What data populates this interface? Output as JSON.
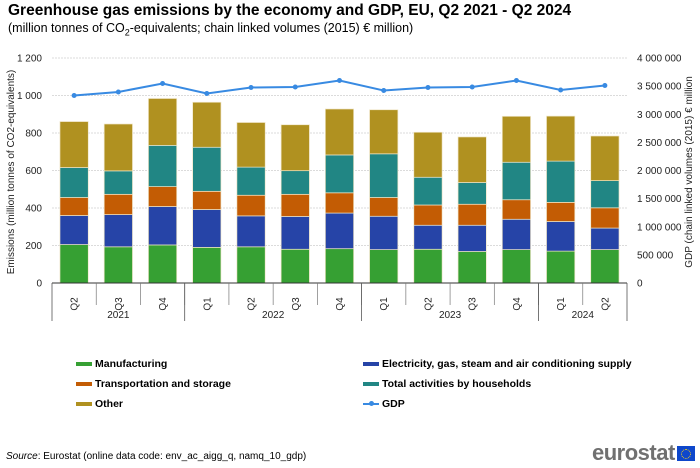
{
  "title": "Greenhouse gas emissions by the economy and GDP, EU, Q2 2021 - Q2 2024",
  "subtitle_pre": "(million tonnes of CO",
  "subtitle_sub": "2",
  "subtitle_post": "-equivalents;  chain linked  volumes  (2015) € million)",
  "source_label": "Source",
  "source_text": ": Eurostat (online data code: env_ac_aigg_q, namq_10_gdp)",
  "logo_text": "eurostat",
  "chart_data": {
    "type": "bar",
    "stacked": true,
    "title": "Greenhouse gas emissions by the economy and GDP, EU, Q2 2021 - Q2 2024",
    "ylabel": "Emissions (million tonnes of CO2-equivalents)",
    "y2label": "GDP (chain linked volumes (2015) € million",
    "ylim": [
      0,
      1200
    ],
    "y2lim": [
      0,
      4000000
    ],
    "yticks": [
      0,
      200,
      400,
      600,
      800,
      1000,
      1200
    ],
    "ytick_labels": [
      "0",
      "200",
      "400",
      "600",
      "800",
      "1 000",
      "1 200"
    ],
    "y2ticks": [
      0,
      500000,
      1000000,
      1500000,
      2000000,
      2500000,
      3000000,
      3500000,
      4000000
    ],
    "y2tick_labels": [
      "0",
      "500 000",
      "1 000 000",
      "1 500 000",
      "2 000 000",
      "2 500 000",
      "3 000 000",
      "3 500 000",
      "4 000 000"
    ],
    "grid": true,
    "categories": [
      "Q2",
      "Q3",
      "Q4",
      "Q1",
      "Q2",
      "Q3",
      "Q4",
      "Q1",
      "Q2",
      "Q3",
      "Q4",
      "Q1",
      "Q2"
    ],
    "year_groups": [
      {
        "label": "2021",
        "count": 3
      },
      {
        "label": "2022",
        "count": 4
      },
      {
        "label": "2023",
        "count": 4
      },
      {
        "label": "2024",
        "count": 2
      }
    ],
    "series": [
      {
        "name": "Manufacturing",
        "color": "#36a033",
        "values": [
          205,
          193,
          203,
          190,
          193,
          180,
          183,
          178,
          180,
          168,
          178,
          170,
          178
        ]
      },
      {
        "name": "Electricity, gas, steam and air conditioning supply",
        "color": "#2644a7",
        "values": [
          155,
          172,
          205,
          202,
          165,
          175,
          190,
          178,
          128,
          140,
          162,
          158,
          115
        ]
      },
      {
        "name": "Transportation and storage",
        "color": "#c35c04",
        "values": [
          96,
          108,
          106,
          97,
          110,
          118,
          108,
          100,
          108,
          112,
          104,
          102,
          108
        ]
      },
      {
        "name": "Total activities by households",
        "color": "#218684",
        "values": [
          160,
          125,
          220,
          235,
          150,
          126,
          202,
          233,
          148,
          116,
          200,
          220,
          145
        ]
      },
      {
        "name": "Other",
        "color": "#b09120",
        "values": [
          245,
          250,
          250,
          240,
          238,
          245,
          245,
          235,
          240,
          243,
          245,
          240,
          238
        ]
      }
    ],
    "line_series": {
      "name": "GDP",
      "color": "#388ae2",
      "axis": "right",
      "values": [
        3333000,
        3396000,
        3547000,
        3369000,
        3476000,
        3484000,
        3600000,
        3422000,
        3476000,
        3484000,
        3600000,
        3431000,
        3511000
      ]
    },
    "legend": [
      {
        "name": "Manufacturing",
        "color": "#36a033",
        "kind": "bar"
      },
      {
        "name": "Electricity, gas, steam and air conditioning supply",
        "color": "#2644a7",
        "kind": "bar"
      },
      {
        "name": "Transportation and storage",
        "color": "#c35c04",
        "kind": "bar"
      },
      {
        "name": "Total activities by households",
        "color": "#218684",
        "kind": "bar"
      },
      {
        "name": "Other",
        "color": "#b09120",
        "kind": "bar"
      },
      {
        "name": "GDP",
        "color": "#388ae2",
        "kind": "line"
      }
    ],
    "legend_position": "bottom"
  }
}
